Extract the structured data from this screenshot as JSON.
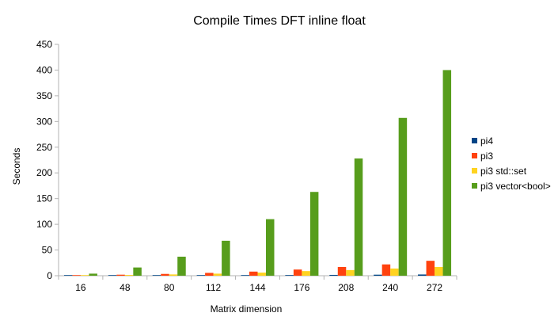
{
  "chart_data": {
    "type": "bar",
    "title": "Compile Times DFT inline float",
    "xlabel": "Matrix dimension",
    "ylabel": "Seconds",
    "ylim": [
      0,
      450
    ],
    "yticks": [
      0,
      50,
      100,
      150,
      200,
      250,
      300,
      350,
      400,
      450
    ],
    "grid": false,
    "legend_position": "right",
    "categories": [
      "16",
      "48",
      "80",
      "112",
      "144",
      "176",
      "208",
      "240",
      "272"
    ],
    "series": [
      {
        "name": "pi4",
        "color": "#004586",
        "values": [
          0.2,
          0.4,
          0.6,
          0.8,
          1.0,
          1.3,
          1.6,
          2.0,
          2.4
        ]
      },
      {
        "name": "pi3",
        "color": "#ff420e",
        "values": [
          0.5,
          2,
          3.5,
          5.5,
          8,
          12,
          17,
          22,
          29
        ]
      },
      {
        "name": "pi3 std::set",
        "color": "#ffd320",
        "values": [
          0.4,
          1.5,
          2.5,
          4,
          6,
          9,
          11,
          14,
          17
        ]
      },
      {
        "name": "pi3 vector<bool>",
        "color": "#579d1c",
        "values": [
          4,
          16,
          37,
          68,
          110,
          163,
          228,
          307,
          400
        ]
      }
    ]
  }
}
